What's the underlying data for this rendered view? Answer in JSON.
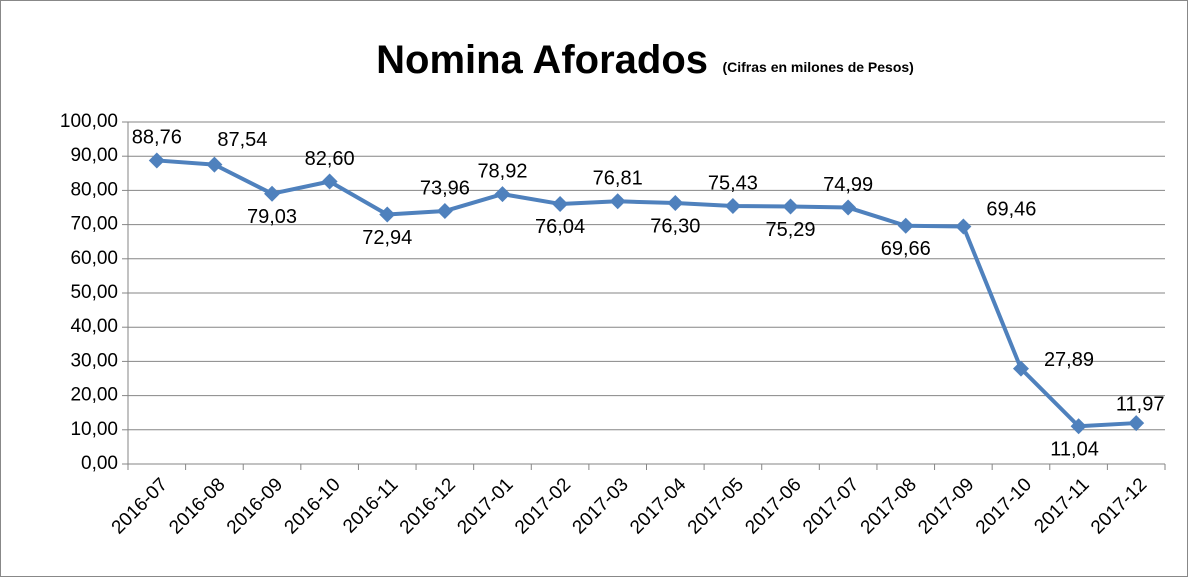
{
  "chart_data": {
    "type": "line",
    "title": "Nomina Aforados",
    "subtitle": "(Cifras en milones de Pesos)",
    "categories": [
      "2016-07",
      "2016-08",
      "2016-09",
      "2016-10",
      "2016-11",
      "2016-12",
      "2017-01",
      "2017-02",
      "2017-03",
      "2017-04",
      "2017-05",
      "2017-06",
      "2017-07",
      "2017-08",
      "2017-09",
      "2017-10",
      "2017-11",
      "2017-12"
    ],
    "series": [
      {
        "name": "Nomina Aforados",
        "color": "#4f81bd",
        "values": [
          88.76,
          87.54,
          79.03,
          82.6,
          72.94,
          73.96,
          78.92,
          76.04,
          76.81,
          76.3,
          75.43,
          75.29,
          74.99,
          69.66,
          69.46,
          27.89,
          11.04,
          11.97
        ],
        "value_labels": [
          "88,76",
          "87,54",
          "79,03",
          "82,60",
          "72,94",
          "73,96",
          "78,92",
          "76,04",
          "76,81",
          "76,30",
          "75,43",
          "75,29",
          "74,99",
          "69,66",
          "69,46",
          "27,89",
          "11,04",
          "11,97"
        ]
      }
    ],
    "ylim": [
      0,
      100
    ],
    "yticks": [
      {
        "value": 0,
        "label": "0,00"
      },
      {
        "value": 10,
        "label": "10,00"
      },
      {
        "value": 20,
        "label": "20,00"
      },
      {
        "value": 30,
        "label": "30,00"
      },
      {
        "value": 40,
        "label": "40,00"
      },
      {
        "value": 50,
        "label": "50,00"
      },
      {
        "value": 60,
        "label": "60,00"
      },
      {
        "value": 70,
        "label": "70,00"
      },
      {
        "value": 80,
        "label": "80,00"
      },
      {
        "value": 90,
        "label": "90,00"
      },
      {
        "value": 100,
        "label": "100,00"
      }
    ],
    "grid": true
  }
}
